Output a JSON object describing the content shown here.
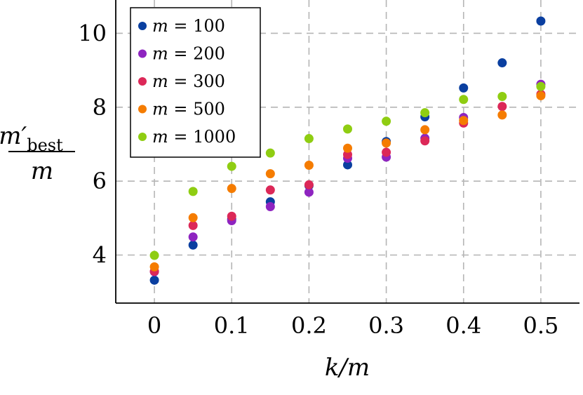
{
  "chart_data": {
    "type": "scatter",
    "title": "",
    "xlabel": "k/m",
    "ylabel": "m′best / m",
    "ylabel_num_base": "m′",
    "ylabel_num_sub": "best",
    "ylabel_den": "m",
    "xlim": [
      -0.05,
      0.55
    ],
    "ylim": [
      2.7,
      10.9
    ],
    "xticks": [
      0,
      0.1,
      0.2,
      0.3,
      0.4,
      0.5
    ],
    "xtick_labels": [
      "0",
      "0.1",
      "0.2",
      "0.3",
      "0.4",
      "0.5"
    ],
    "yticks": [
      4,
      6,
      8,
      10
    ],
    "ytick_labels": [
      "4",
      "6",
      "8",
      "10"
    ],
    "grid": true,
    "legend_position": "top-left",
    "x": [
      0,
      0.05,
      0.1,
      0.15,
      0.2,
      0.25,
      0.3,
      0.35,
      0.4,
      0.45,
      0.5
    ],
    "series": [
      {
        "name": "m = 100",
        "legend_var": "m",
        "legend_value": "100",
        "color": "#0a3fa0",
        "values": [
          3.32,
          4.27,
          4.97,
          5.44,
          5.88,
          6.44,
          7.07,
          7.74,
          8.52,
          9.2,
          10.33
        ]
      },
      {
        "name": "m = 200",
        "legend_var": "m",
        "legend_value": "200",
        "color": "#8e24c0",
        "values": [
          3.55,
          4.49,
          4.93,
          5.31,
          5.7,
          6.62,
          6.65,
          7.16,
          7.72,
          null,
          8.62
        ]
      },
      {
        "name": "m = 300",
        "legend_var": "m",
        "legend_value": "300",
        "color": "#dc2858",
        "values": [
          3.56,
          4.8,
          5.05,
          5.76,
          5.9,
          6.72,
          6.78,
          7.09,
          7.57,
          8.02,
          8.35
        ]
      },
      {
        "name": "m = 500",
        "legend_var": "m",
        "legend_value": "500",
        "color": "#f57c00",
        "values": [
          3.68,
          5.01,
          5.8,
          6.2,
          6.43,
          6.89,
          7.03,
          7.39,
          7.64,
          7.79,
          8.31
        ]
      },
      {
        "name": "m = 1000",
        "legend_var": "m",
        "legend_value": "1000",
        "color": "#8fcd12",
        "values": [
          3.99,
          5.72,
          6.4,
          6.76,
          7.15,
          7.41,
          7.62,
          7.85,
          8.21,
          8.29,
          8.56
        ]
      }
    ]
  }
}
